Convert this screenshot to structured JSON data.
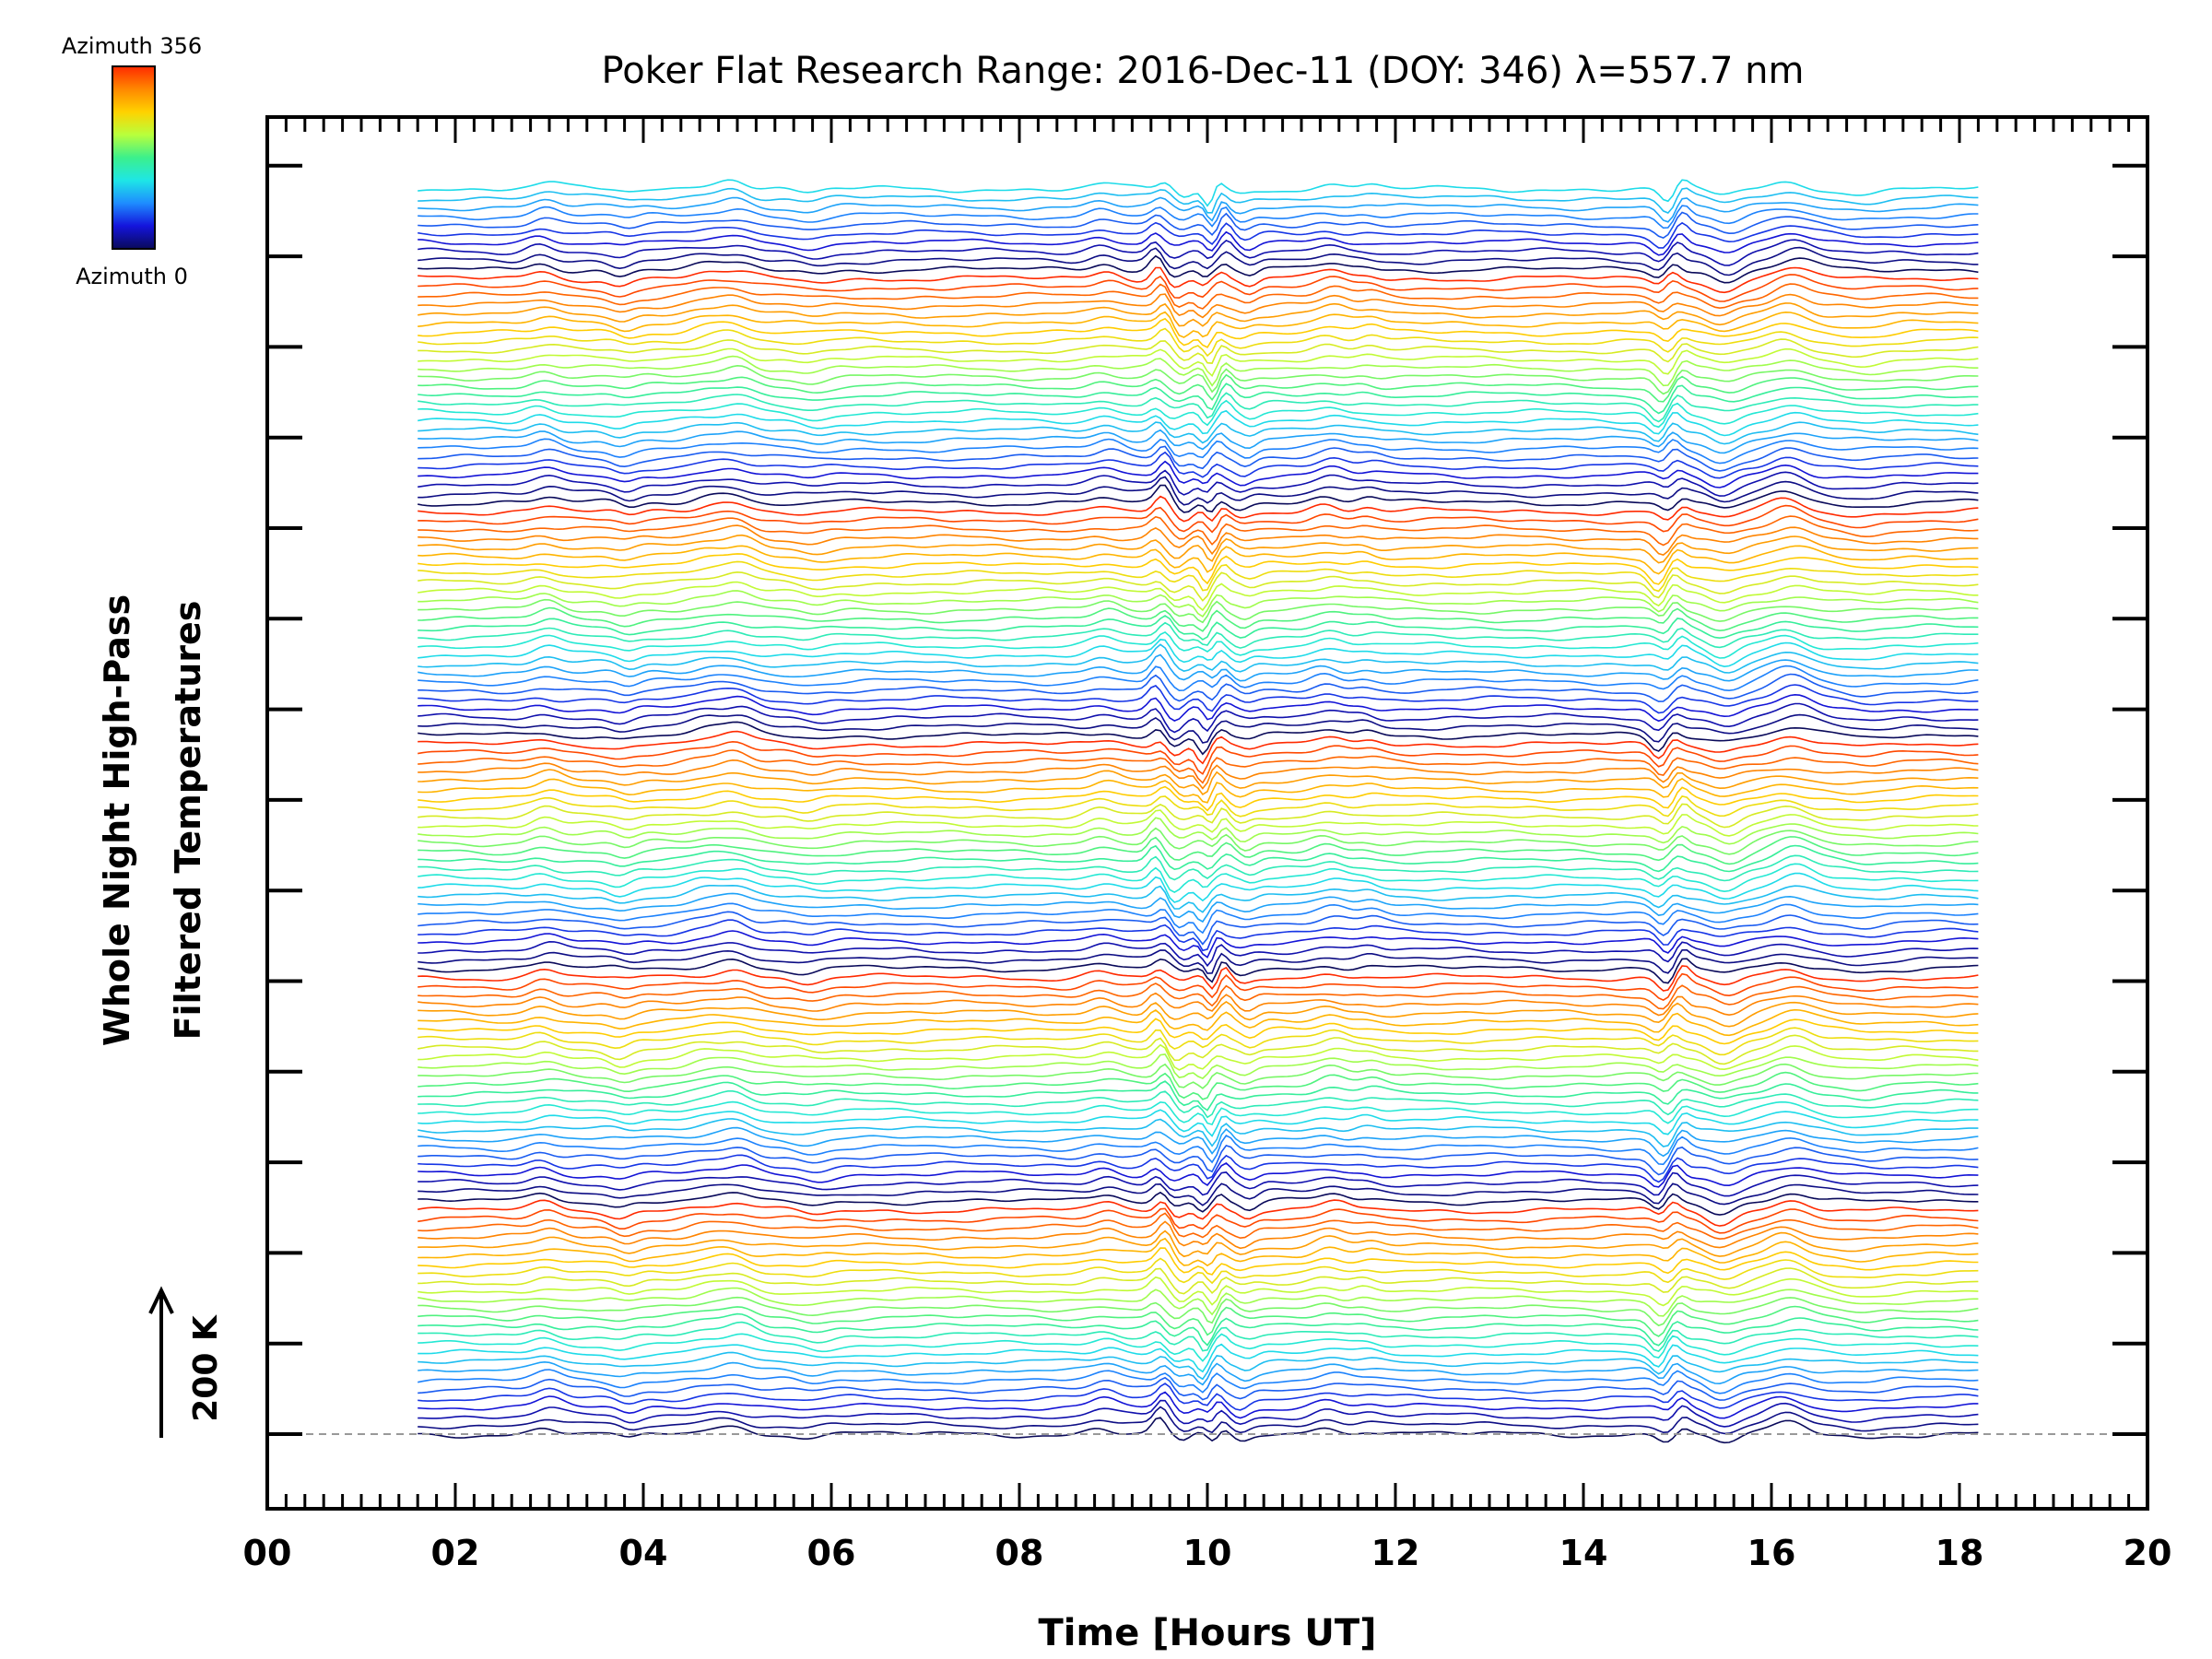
{
  "chart_data": {
    "type": "line",
    "title": "Poker Flat Research Range: 2016-Dec-11 (DOY: 346) λ=557.7 nm",
    "xlabel": "Time [Hours UT]",
    "ylabel_line1": "Whole Night High-Pass",
    "ylabel_line2": "Filtered Temperatures",
    "xlim": [
      0,
      20
    ],
    "x_tick_labels": [
      "00",
      "02",
      "04",
      "06",
      "08",
      "10",
      "12",
      "14",
      "16",
      "18",
      "20"
    ],
    "data_start_hour": 1.6,
    "data_end_hour": 18.2,
    "n_traces": 140,
    "scale_bar_label": "200 K",
    "colorbar": {
      "top_label": "Azimuth 356",
      "bottom_label": "Azimuth 0",
      "colors": [
        "#ff2a00",
        "#ff8800",
        "#ffd200",
        "#b8ff3c",
        "#3cf08c",
        "#1ee6e6",
        "#1e8cff",
        "#1414dc",
        "#0a0a5a"
      ]
    },
    "features": [
      {
        "hour": 2.95,
        "amp": 1.0,
        "width": 0.18
      },
      {
        "hour": 3.8,
        "amp": -0.8,
        "width": 0.15
      },
      {
        "hour": 4.7,
        "amp": 0.9,
        "width": 0.25
      },
      {
        "hour": 5.0,
        "amp": 1.2,
        "width": 0.2
      },
      {
        "hour": 5.8,
        "amp": -0.6,
        "width": 0.2
      },
      {
        "hour": 8.9,
        "amp": 0.9,
        "width": 0.18
      },
      {
        "hour": 9.5,
        "amp": 1.9,
        "width": 0.1
      },
      {
        "hour": 9.7,
        "amp": -1.5,
        "width": 0.12
      },
      {
        "hour": 10.0,
        "amp": -2.2,
        "width": 0.08
      },
      {
        "hour": 10.15,
        "amp": 1.2,
        "width": 0.08
      },
      {
        "hour": 10.4,
        "amp": -1.0,
        "width": 0.12
      },
      {
        "hour": 11.3,
        "amp": 1.0,
        "width": 0.2
      },
      {
        "hour": 11.7,
        "amp": 0.6,
        "width": 0.15
      },
      {
        "hour": 14.85,
        "amp": -2.0,
        "width": 0.12
      },
      {
        "hour": 15.0,
        "amp": 1.5,
        "width": 0.1
      },
      {
        "hour": 15.5,
        "amp": -1.5,
        "width": 0.2
      },
      {
        "hour": 16.2,
        "amp": 1.6,
        "width": 0.25
      },
      {
        "hour": 17.0,
        "amp": -0.5,
        "width": 0.3
      }
    ]
  }
}
